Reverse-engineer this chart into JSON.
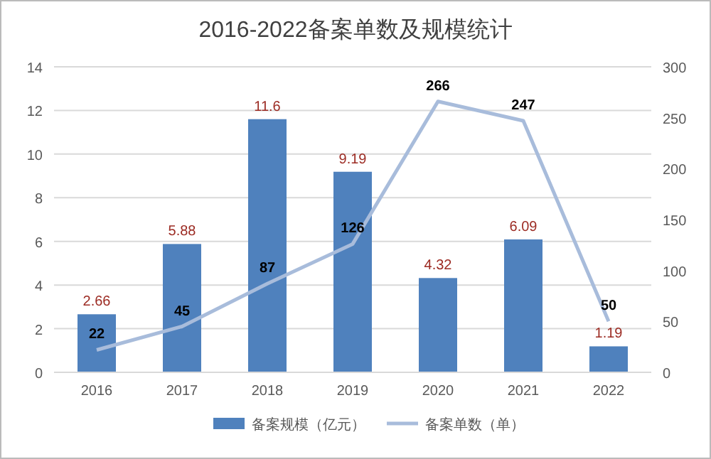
{
  "chart_data": {
    "type": "bar",
    "title": "2016-2022备案单数及规模统计",
    "categories": [
      "2016",
      "2017",
      "2018",
      "2019",
      "2020",
      "2021",
      "2022"
    ],
    "series": [
      {
        "name": "备案规模（亿元）",
        "color": "#4f81bd",
        "values": [
          2.66,
          5.88,
          11.6,
          9.19,
          4.32,
          6.09,
          1.19
        ]
      },
      {
        "name": "备案单数（单）",
        "type": "line",
        "axis": "y2",
        "color": "#a8bcdb",
        "values": [
          22,
          45,
          87,
          126,
          266,
          247,
          50
        ]
      }
    ],
    "ylim": [
      0,
      14
    ],
    "yticks": [
      0,
      2,
      4,
      6,
      8,
      10,
      12,
      14
    ],
    "y2lim": [
      0,
      300
    ],
    "y2ticks": [
      0,
      50,
      100,
      150,
      200,
      250,
      300
    ],
    "grid": "y",
    "legend": "bottom",
    "data_labels": true,
    "marker": "none",
    "line_style": "solid"
  }
}
